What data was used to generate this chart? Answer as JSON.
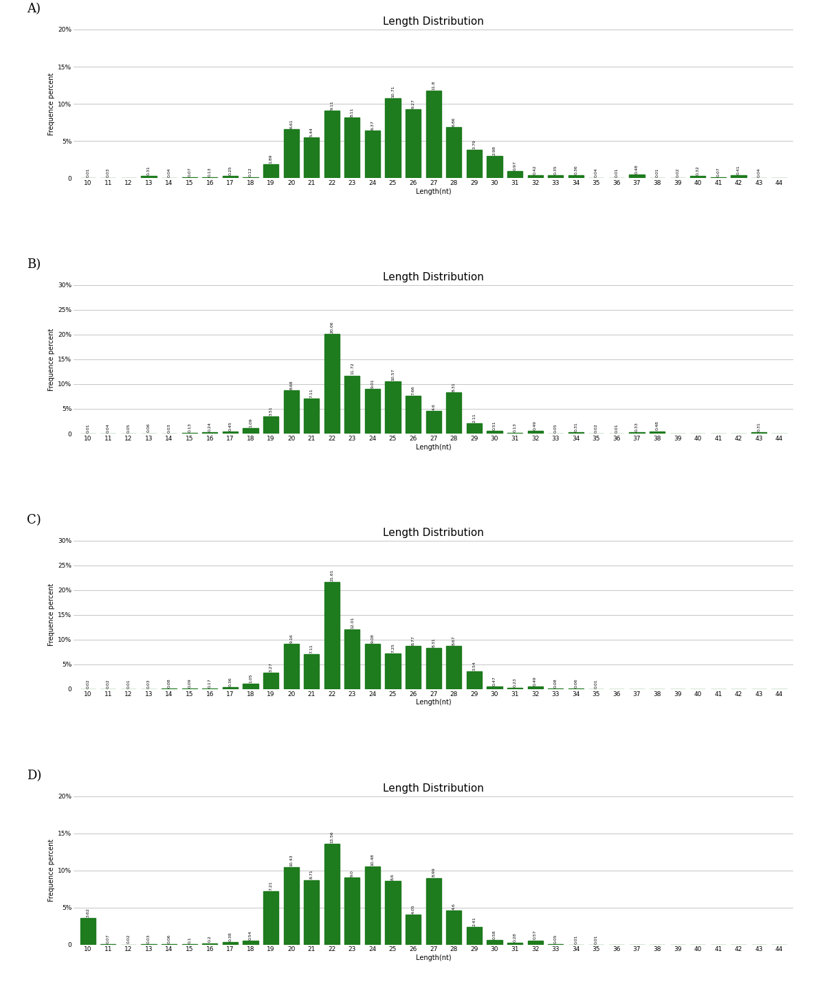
{
  "charts": [
    {
      "label": "A)",
      "title": "Length Distribution",
      "xlabel": "Length(nt)",
      "ylabel": "Frequence percent",
      "ylim": [
        0,
        20
      ],
      "yticks": [
        0,
        5,
        10,
        15,
        20
      ],
      "ytick_labels": [
        "0",
        "5%",
        "10%",
        "15%",
        "20%"
      ],
      "values": [
        0.01,
        0.03,
        0.0,
        0.31,
        0.04,
        0.07,
        0.13,
        0.25,
        0.12,
        1.89,
        6.61,
        5.44,
        9.11,
        8.11,
        6.37,
        10.71,
        9.27,
        11.8,
        6.86,
        3.79,
        2.98,
        0.97,
        0.42,
        0.35,
        0.36,
        0.04,
        0.01,
        0.48,
        0.01,
        0.02,
        0.32,
        0.07,
        0.41,
        0.04,
        0.0
      ]
    },
    {
      "label": "B)",
      "title": "Length Distribution",
      "xlabel": "Length(nt)",
      "ylabel": "Frequence percent",
      "ylim": [
        0,
        30
      ],
      "yticks": [
        0,
        5,
        10,
        15,
        20,
        25,
        30
      ],
      "ytick_labels": [
        "0",
        "5%",
        "10%",
        "15%",
        "20%",
        "25%",
        "30%"
      ],
      "values": [
        0.01,
        0.04,
        0.05,
        0.06,
        0.03,
        0.13,
        0.24,
        0.45,
        1.09,
        3.51,
        8.68,
        7.11,
        20.06,
        11.72,
        9.01,
        10.57,
        7.66,
        4.6,
        8.31,
        2.11,
        0.51,
        0.13,
        0.49,
        0.05,
        0.31,
        0.02,
        0.01,
        0.33,
        0.48,
        0.0,
        0.0,
        0.0,
        0.0,
        0.31,
        0.0
      ]
    },
    {
      "label": "C)",
      "title": "Length Distribution",
      "xlabel": "Length(nt)",
      "ylabel": "Frequence percent",
      "ylim": [
        0,
        30
      ],
      "yticks": [
        0,
        5,
        10,
        15,
        20,
        25,
        30
      ],
      "ytick_labels": [
        "0",
        "5%",
        "10%",
        "15%",
        "20%",
        "25%",
        "30%"
      ],
      "values": [
        0.02,
        0.02,
        0.01,
        0.03,
        0.08,
        0.09,
        0.17,
        0.36,
        1.05,
        3.27,
        9.16,
        7.11,
        21.61,
        12.01,
        9.08,
        7.25,
        8.77,
        8.31,
        8.67,
        3.54,
        0.47,
        0.23,
        0.49,
        0.08,
        0.06,
        0.01,
        0.0,
        0.0,
        0.0,
        0.0,
        0.0,
        0.0,
        0.0,
        0.0,
        0.0
      ]
    },
    {
      "label": "D)",
      "title": "Length Distribution",
      "xlabel": "Length(nt)",
      "ylabel": "Frequence percent",
      "ylim": [
        0,
        20
      ],
      "yticks": [
        0,
        5,
        10,
        15,
        20
      ],
      "ytick_labels": [
        "0",
        "5%",
        "10%",
        "15%",
        "20%"
      ],
      "values": [
        3.62,
        0.07,
        0.02,
        0.03,
        0.06,
        0.1,
        0.2,
        0.38,
        0.54,
        7.21,
        10.43,
        8.71,
        13.56,
        9.0,
        10.48,
        8.6,
        4.05,
        8.99,
        4.6,
        2.41,
        0.58,
        0.28,
        0.57,
        0.05,
        0.01,
        0.01,
        0.0,
        0.0,
        0.0,
        0.0,
        0.0,
        0.0,
        0.0,
        0.0,
        0.0
      ]
    }
  ],
  "x_labels": [
    "10",
    "11",
    "12",
    "13",
    "14",
    "15",
    "16",
    "17",
    "18",
    "19",
    "20",
    "21",
    "22",
    "23",
    "24",
    "25",
    "26",
    "27",
    "28",
    "29",
    "30",
    "31",
    "32",
    "33",
    "34",
    "35",
    "36",
    "37",
    "38",
    "39",
    "40",
    "41",
    "42",
    "43",
    "44"
  ],
  "bar_color": "#1e7b1e",
  "bg_color": "#ffffff",
  "grid_color": "#bbbbbb",
  "title_fontsize": 11,
  "axis_label_fontsize": 7,
  "tick_fontsize": 6.5,
  "bar_label_fontsize": 4.5,
  "panel_label_fontsize": 13
}
